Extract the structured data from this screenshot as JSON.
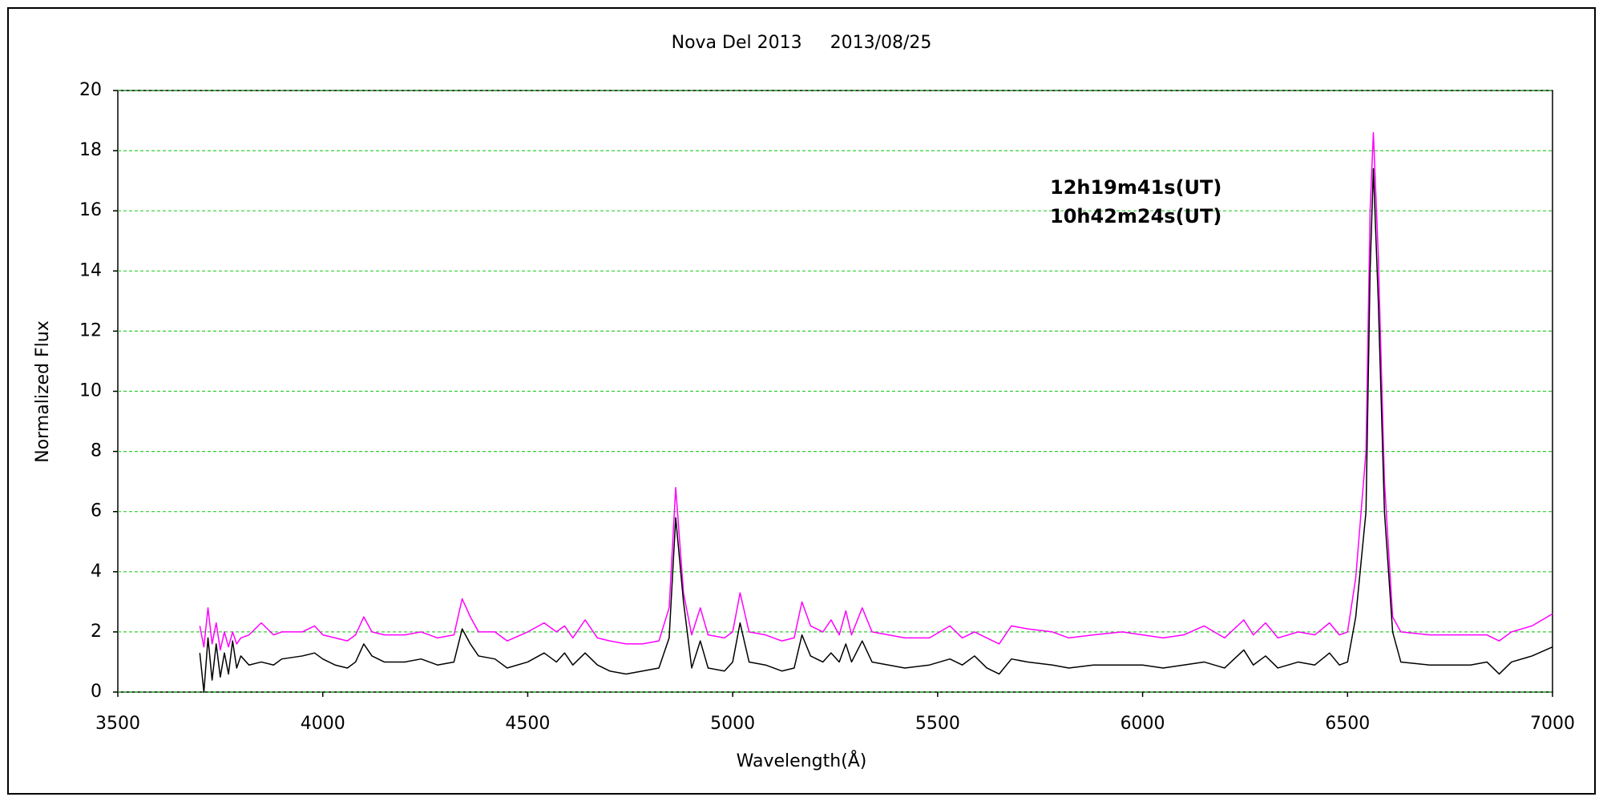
{
  "chart_data": {
    "type": "line",
    "title": "Nova Del 2013     2013/08/25",
    "x_label": "Wavelength(Å)",
    "y_label": "Normalized Flux",
    "xlim": [
      3500,
      7000
    ],
    "xticks": [
      3500,
      4000,
      4500,
      5000,
      5500,
      6000,
      6500,
      7000
    ],
    "ylim": [
      0,
      20
    ],
    "yticks": [
      0,
      2,
      4,
      6,
      8,
      10,
      12,
      14,
      16,
      18,
      20
    ],
    "grid": true,
    "grid_color": "#33cc33",
    "x": [
      3700,
      3710,
      3720,
      3730,
      3740,
      3750,
      3760,
      3770,
      3780,
      3790,
      3800,
      3820,
      3850,
      3880,
      3900,
      3950,
      3980,
      4000,
      4030,
      4060,
      4080,
      4100,
      4120,
      4150,
      4200,
      4240,
      4280,
      4320,
      4340,
      4360,
      4380,
      4420,
      4450,
      4500,
      4540,
      4570,
      4590,
      4610,
      4640,
      4670,
      4700,
      4740,
      4780,
      4820,
      4845,
      4861,
      4880,
      4900,
      4921,
      4940,
      4980,
      5000,
      5018,
      5040,
      5080,
      5120,
      5150,
      5169,
      5190,
      5220,
      5240,
      5260,
      5276,
      5290,
      5316,
      5340,
      5380,
      5420,
      5480,
      5530,
      5560,
      5590,
      5620,
      5650,
      5680,
      5720,
      5780,
      5820,
      5880,
      5950,
      6000,
      6050,
      6100,
      6150,
      6200,
      6247,
      6270,
      6300,
      6330,
      6380,
      6420,
      6456,
      6480,
      6500,
      6520,
      6545,
      6555,
      6563,
      6575,
      6590,
      6610,
      6630,
      6700,
      6800,
      6840,
      6870,
      6900,
      6950,
      7000
    ],
    "series": [
      {
        "name": "12h19m41s(UT)",
        "color": "#ff00ff",
        "values": [
          2.2,
          1.5,
          2.8,
          1.6,
          2.3,
          1.4,
          2.0,
          1.5,
          2.0,
          1.6,
          1.8,
          1.9,
          2.3,
          1.9,
          2.0,
          2.0,
          2.2,
          1.9,
          1.8,
          1.7,
          1.9,
          2.5,
          2.0,
          1.9,
          1.9,
          2.0,
          1.8,
          1.9,
          3.1,
          2.5,
          2.0,
          2.0,
          1.7,
          2.0,
          2.3,
          2.0,
          2.2,
          1.8,
          2.4,
          1.8,
          1.7,
          1.6,
          1.6,
          1.7,
          2.8,
          6.8,
          3.3,
          1.9,
          2.8,
          1.9,
          1.8,
          2.0,
          3.3,
          2.0,
          1.9,
          1.7,
          1.8,
          3.0,
          2.2,
          2.0,
          2.4,
          1.9,
          2.7,
          1.9,
          2.8,
          2.0,
          1.9,
          1.8,
          1.8,
          2.2,
          1.8,
          2.0,
          1.8,
          1.6,
          2.2,
          2.1,
          2.0,
          1.8,
          1.9,
          2.0,
          1.9,
          1.8,
          1.9,
          2.2,
          1.8,
          2.4,
          1.9,
          2.3,
          1.8,
          2.0,
          1.9,
          2.3,
          1.9,
          2.0,
          3.8,
          8.0,
          16.0,
          18.6,
          14.5,
          7.0,
          2.5,
          2.0,
          1.9,
          1.9,
          1.9,
          1.7,
          2.0,
          2.2,
          2.6
        ]
      },
      {
        "name": "10h42m24s(UT)",
        "color": "#000000",
        "values": [
          1.3,
          0.0,
          1.8,
          0.4,
          1.6,
          0.5,
          1.3,
          0.6,
          1.7,
          0.8,
          1.2,
          0.9,
          1.0,
          0.9,
          1.1,
          1.2,
          1.3,
          1.1,
          0.9,
          0.8,
          1.0,
          1.6,
          1.2,
          1.0,
          1.0,
          1.1,
          0.9,
          1.0,
          2.1,
          1.6,
          1.2,
          1.1,
          0.8,
          1.0,
          1.3,
          1.0,
          1.3,
          0.9,
          1.3,
          0.9,
          0.7,
          0.6,
          0.7,
          0.8,
          1.8,
          5.8,
          3.0,
          0.8,
          1.7,
          0.8,
          0.7,
          1.0,
          2.3,
          1.0,
          0.9,
          0.7,
          0.8,
          1.9,
          1.2,
          1.0,
          1.3,
          1.0,
          1.6,
          1.0,
          1.7,
          1.0,
          0.9,
          0.8,
          0.9,
          1.1,
          0.9,
          1.2,
          0.8,
          0.6,
          1.1,
          1.0,
          0.9,
          0.8,
          0.9,
          0.9,
          0.9,
          0.8,
          0.9,
          1.0,
          0.8,
          1.4,
          0.9,
          1.2,
          0.8,
          1.0,
          0.9,
          1.3,
          0.9,
          1.0,
          2.5,
          6.0,
          14.0,
          17.4,
          13.0,
          6.0,
          2.0,
          1.0,
          0.9,
          0.9,
          1.0,
          0.6,
          1.0,
          1.2,
          1.5
        ]
      }
    ]
  }
}
